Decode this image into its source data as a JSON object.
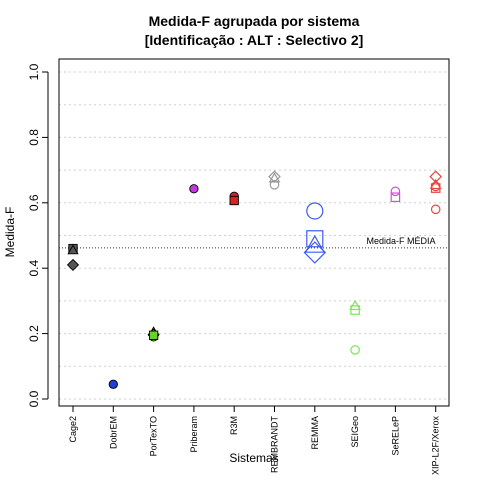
{
  "chart_data": {
    "type": "scatter",
    "title": "Medida-F agrupada por sistema",
    "subtitle": "[Identificação : ALT : Selectivo 2]",
    "xlabel": "Sistemas",
    "ylabel": "Medida-F",
    "ylim": [
      0,
      1
    ],
    "yticks": [
      "0.0",
      "0.2",
      "0.4",
      "0.6",
      "0.8",
      "1.0"
    ],
    "grid": true,
    "categories": [
      "Cage2",
      "DobrEM",
      "PorTexTO",
      "Priberam",
      "R3M",
      "REMBRANDT",
      "REMMA",
      "SEIGeo",
      "SeRELeP",
      "XIP-L2F/Xerox"
    ],
    "reference_line": {
      "label": "Medida-F MÉDIA",
      "value": 0.462
    },
    "points": [
      {
        "category": "Cage2",
        "value": 0.46,
        "shape": "circle",
        "size": 1,
        "filled": true,
        "color": "#555555"
      },
      {
        "category": "Cage2",
        "value": 0.46,
        "shape": "square",
        "size": 1,
        "filled": true,
        "color": "#555555"
      },
      {
        "category": "Cage2",
        "value": 0.455,
        "shape": "triangle",
        "size": 1,
        "filled": true,
        "color": "#555555"
      },
      {
        "category": "Cage2",
        "value": 0.41,
        "shape": "diamond",
        "size": 1,
        "filled": true,
        "color": "#555555"
      },
      {
        "category": "DobrEM",
        "value": 0.045,
        "shape": "circle",
        "size": 1,
        "filled": true,
        "color": "#1f3fd6"
      },
      {
        "category": "PorTexTO",
        "value": 0.205,
        "shape": "triangle",
        "size": 1,
        "filled": true,
        "color": "#6bd22a"
      },
      {
        "category": "PorTexTO",
        "value": 0.197,
        "shape": "diamond",
        "size": 1,
        "filled": true,
        "color": "#6bd22a"
      },
      {
        "category": "PorTexTO",
        "value": 0.19,
        "shape": "circle",
        "size": 1,
        "filled": true,
        "color": "#6bd22a"
      },
      {
        "category": "PorTexTO",
        "value": 0.195,
        "shape": "square",
        "size": 1,
        "filled": true,
        "color": "#6bd22a"
      },
      {
        "category": "Priberam",
        "value": 0.643,
        "shape": "circle",
        "size": 1,
        "filled": true,
        "color": "#c13ad8"
      },
      {
        "category": "R3M",
        "value": 0.62,
        "shape": "circle",
        "size": 1,
        "filled": true,
        "color": "#d42424"
      },
      {
        "category": "R3M",
        "value": 0.607,
        "shape": "square",
        "size": 1,
        "filled": true,
        "color": "#d42424"
      },
      {
        "category": "REMBRANDT",
        "value": 0.68,
        "shape": "diamond",
        "size": 1,
        "filled": false,
        "color": "#9a9a9a"
      },
      {
        "category": "REMBRANDT",
        "value": 0.675,
        "shape": "triangle",
        "size": 1,
        "filled": false,
        "color": "#9a9a9a"
      },
      {
        "category": "REMBRANDT",
        "value": 0.655,
        "shape": "circle",
        "size": 1,
        "filled": false,
        "color": "#9a9a9a"
      },
      {
        "category": "REMMA",
        "value": 0.575,
        "shape": "circle",
        "size": 2,
        "filled": false,
        "color": "#3b5bf0"
      },
      {
        "category": "REMMA",
        "value": 0.49,
        "shape": "square",
        "size": 2,
        "filled": false,
        "color": "#3b5bf0"
      },
      {
        "category": "REMMA",
        "value": 0.47,
        "shape": "triangle",
        "size": 2,
        "filled": false,
        "color": "#3b5bf0"
      },
      {
        "category": "REMMA",
        "value": 0.448,
        "shape": "diamond",
        "size": 2,
        "filled": false,
        "color": "#3b5bf0"
      },
      {
        "category": "SEIGeo",
        "value": 0.285,
        "shape": "triangle",
        "size": 1,
        "filled": false,
        "color": "#7de35a"
      },
      {
        "category": "SEIGeo",
        "value": 0.272,
        "shape": "square",
        "size": 1,
        "filled": false,
        "color": "#7de35a"
      },
      {
        "category": "SEIGeo",
        "value": 0.15,
        "shape": "circle",
        "size": 1,
        "filled": false,
        "color": "#7de35a"
      },
      {
        "category": "SeRELeP",
        "value": 0.635,
        "shape": "circle",
        "size": 1,
        "filled": false,
        "color": "#d54ce0"
      },
      {
        "category": "SeRELeP",
        "value": 0.617,
        "shape": "square",
        "size": 1,
        "filled": false,
        "color": "#d54ce0"
      },
      {
        "category": "XIP-L2F/Xerox",
        "value": 0.68,
        "shape": "diamond",
        "size": 1,
        "filled": false,
        "color": "#e64545"
      },
      {
        "category": "XIP-L2F/Xerox",
        "value": 0.655,
        "shape": "triangle",
        "size": 1,
        "filled": false,
        "color": "#e64545"
      },
      {
        "category": "XIP-L2F/Xerox",
        "value": 0.65,
        "shape": "circle",
        "size": 1,
        "filled": false,
        "color": "#e64545"
      },
      {
        "category": "XIP-L2F/Xerox",
        "value": 0.645,
        "shape": "square",
        "size": 1,
        "filled": false,
        "color": "#e64545"
      },
      {
        "category": "XIP-L2F/Xerox",
        "value": 0.58,
        "shape": "circle",
        "size": 1,
        "filled": false,
        "color": "#e64545"
      }
    ]
  }
}
